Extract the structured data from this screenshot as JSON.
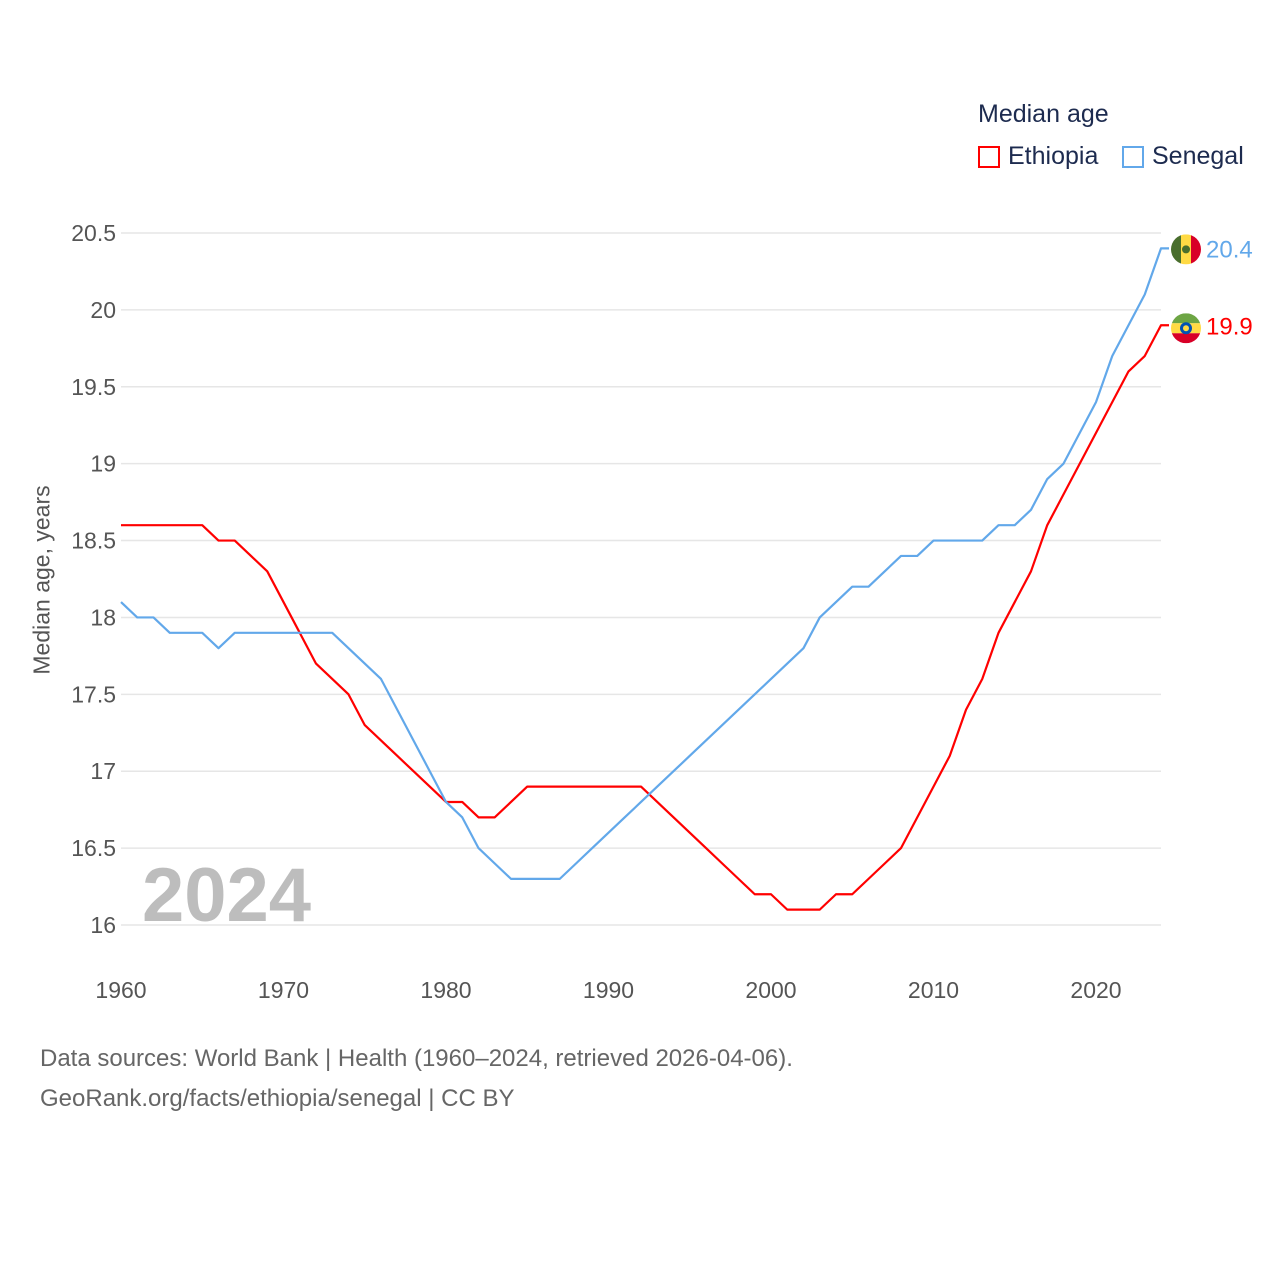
{
  "legend": {
    "title": "Median age"
  },
  "big_year": "2024",
  "footer": {
    "line1": "Data sources: World Bank | Health (1960–2024, retrieved 2026-04-06).",
    "line2": "GeoRank.org/facts/ethiopia/senegal | CC BY"
  },
  "chart_data": {
    "type": "line",
    "title": "Median age",
    "xlabel": "",
    "ylabel": "Median age, years",
    "xlim": [
      1960,
      2024
    ],
    "ylim": [
      16,
      20.5
    ],
    "x_ticks": [
      "1960",
      "1970",
      "1980",
      "1990",
      "2000",
      "2010",
      "2020"
    ],
    "y_ticks": [
      "16",
      "16.5",
      "17",
      "17.5",
      "18",
      "18.5",
      "19",
      "19.5",
      "20",
      "20.5"
    ],
    "grid": true,
    "legend_position": "top-right",
    "x": [
      1960,
      1961,
      1962,
      1963,
      1964,
      1965,
      1966,
      1967,
      1968,
      1969,
      1970,
      1971,
      1972,
      1973,
      1974,
      1975,
      1976,
      1977,
      1978,
      1979,
      1980,
      1981,
      1982,
      1983,
      1984,
      1985,
      1986,
      1987,
      1988,
      1989,
      1990,
      1991,
      1992,
      1993,
      1994,
      1995,
      1996,
      1997,
      1998,
      1999,
      2000,
      2001,
      2002,
      2003,
      2004,
      2005,
      2006,
      2007,
      2008,
      2009,
      2010,
      2011,
      2012,
      2013,
      2014,
      2015,
      2016,
      2017,
      2018,
      2019,
      2020,
      2021,
      2022,
      2023,
      2024
    ],
    "series": [
      {
        "name": "Ethiopia",
        "color": "#ff0000",
        "end_label": "19.9",
        "values": [
          18.6,
          18.6,
          18.6,
          18.6,
          18.6,
          18.6,
          18.5,
          18.5,
          18.4,
          18.3,
          18.1,
          17.9,
          17.7,
          17.6,
          17.5,
          17.3,
          17.2,
          17.1,
          17.0,
          16.9,
          16.8,
          16.8,
          16.7,
          16.7,
          16.8,
          16.9,
          16.9,
          16.9,
          16.9,
          16.9,
          16.9,
          16.9,
          16.9,
          16.8,
          16.7,
          16.6,
          16.5,
          16.4,
          16.3,
          16.2,
          16.2,
          16.1,
          16.1,
          16.1,
          16.2,
          16.2,
          16.3,
          16.4,
          16.5,
          16.7,
          16.9,
          17.1,
          17.4,
          17.6,
          17.9,
          18.1,
          18.3,
          18.6,
          18.8,
          19.0,
          19.2,
          19.4,
          19.6,
          19.7,
          19.9
        ]
      },
      {
        "name": "Senegal",
        "color": "#62a8ea",
        "end_label": "20.4",
        "values": [
          18.1,
          18.0,
          18.0,
          17.9,
          17.9,
          17.9,
          17.8,
          17.9,
          17.9,
          17.9,
          17.9,
          17.9,
          17.9,
          17.9,
          17.8,
          17.7,
          17.6,
          17.4,
          17.2,
          17.0,
          16.8,
          16.7,
          16.5,
          16.4,
          16.3,
          16.3,
          16.3,
          16.3,
          16.4,
          16.5,
          16.6,
          16.7,
          16.8,
          16.9,
          17.0,
          17.1,
          17.2,
          17.3,
          17.4,
          17.5,
          17.6,
          17.7,
          17.8,
          18.0,
          18.1,
          18.2,
          18.2,
          18.3,
          18.4,
          18.4,
          18.5,
          18.5,
          18.5,
          18.5,
          18.6,
          18.6,
          18.7,
          18.9,
          19.0,
          19.2,
          19.4,
          19.7,
          19.9,
          20.1,
          20.4
        ]
      }
    ]
  }
}
